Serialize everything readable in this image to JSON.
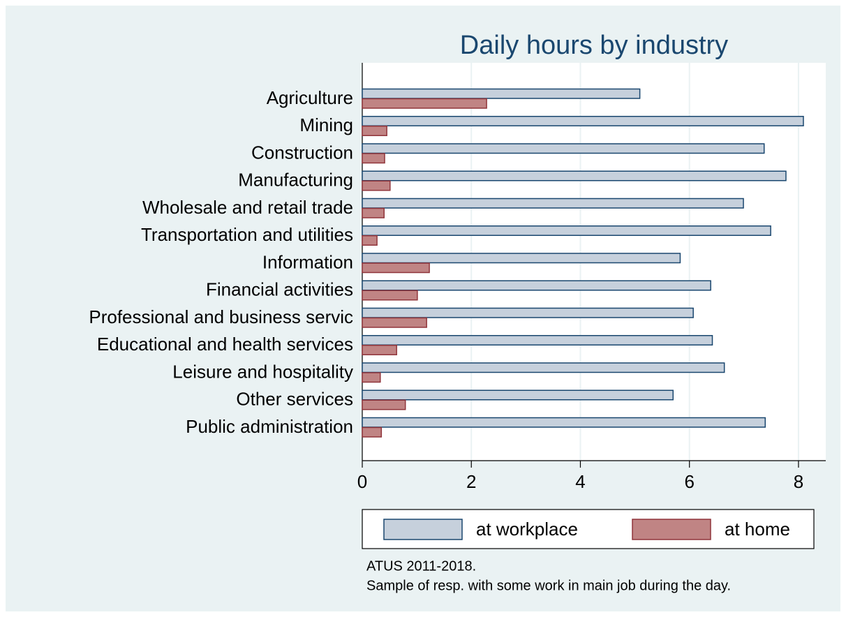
{
  "chart_data": {
    "type": "barh",
    "title": "Daily hours by industry",
    "categories": [
      "Agriculture",
      "Mining",
      "Construction",
      "Manufacturing",
      "Wholesale and retail trade",
      "Transportation and utilities",
      "Information",
      "Financial activities",
      "Professional and business servic",
      "Educational and health services",
      "Leisure and hospitality",
      "Other services",
      "Public administration"
    ],
    "series": [
      {
        "name": "at workplace",
        "color": "#c6d0dc",
        "values": [
          5.09,
          8.09,
          7.37,
          7.77,
          6.99,
          7.49,
          5.83,
          6.39,
          6.07,
          6.42,
          6.64,
          5.7,
          7.39
        ]
      },
      {
        "name": "at home",
        "color": "#c08484",
        "values": [
          2.28,
          0.45,
          0.41,
          0.51,
          0.4,
          0.27,
          1.23,
          1.01,
          1.18,
          0.63,
          0.33,
          0.79,
          0.35
        ]
      }
    ],
    "xlim": [
      0,
      8.5
    ],
    "xticks": [
      0,
      2,
      4,
      6,
      8
    ],
    "grid": true,
    "notes": [
      "ATUS 2011-2018.",
      "Sample of resp. with some work in main job during the day."
    ]
  }
}
